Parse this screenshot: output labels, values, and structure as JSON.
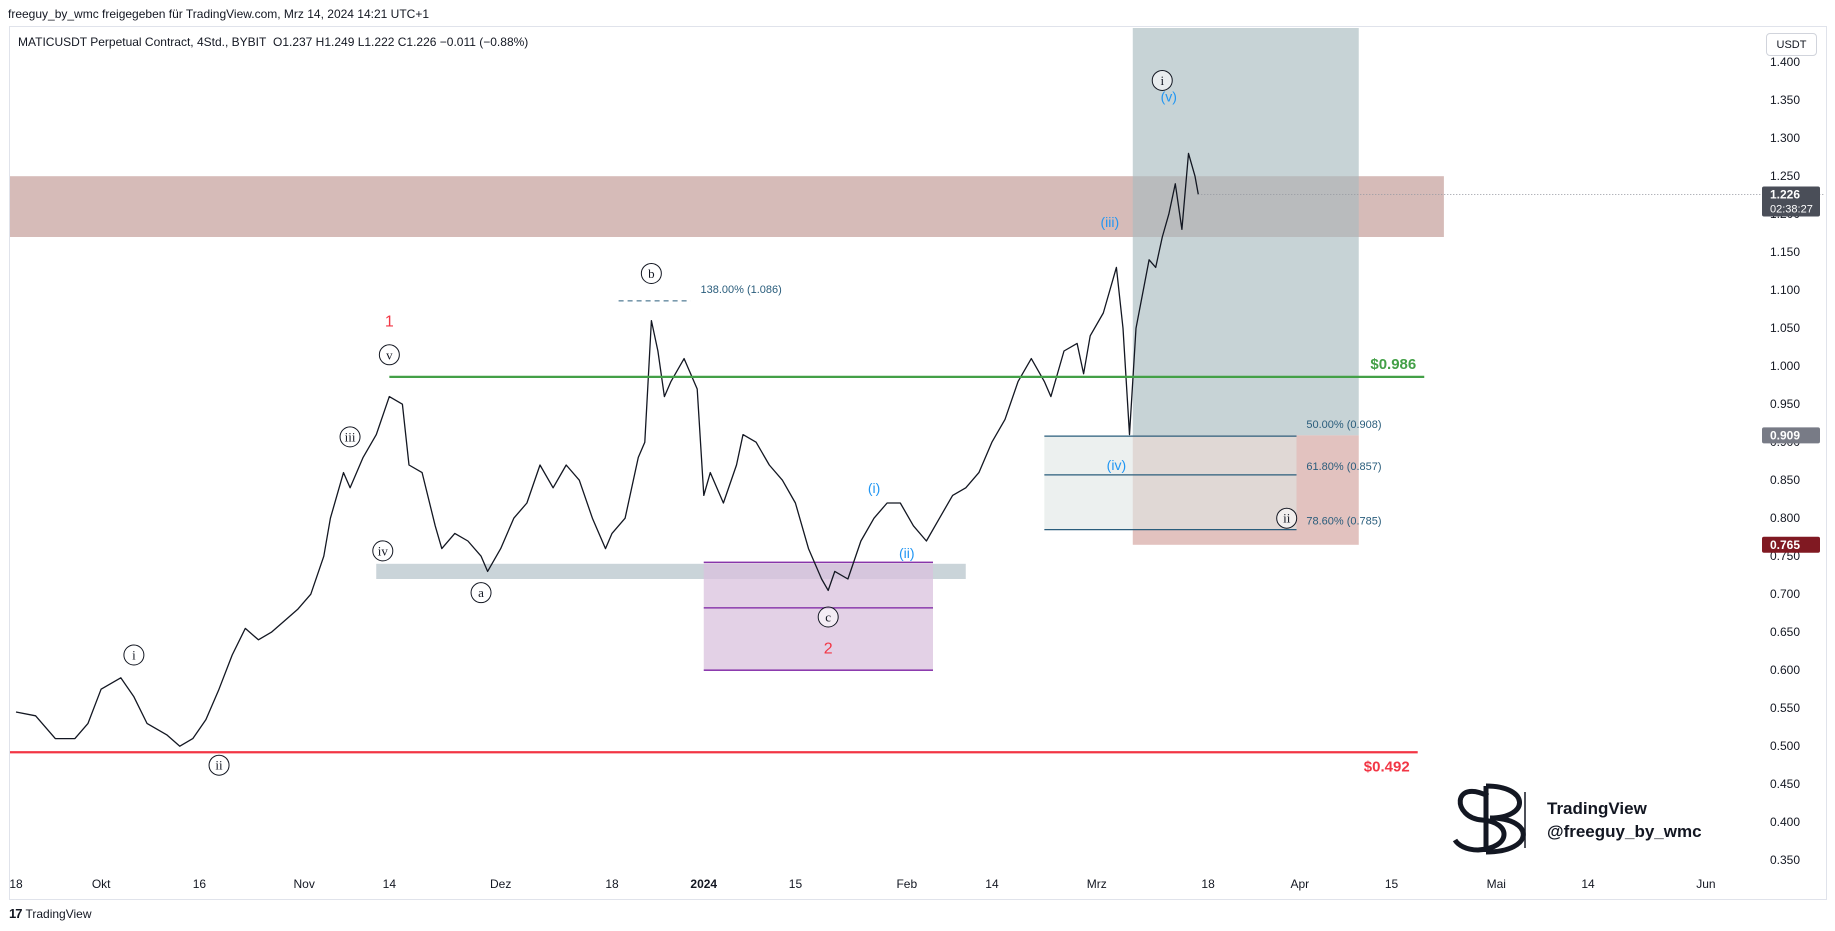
{
  "header": {
    "publisher": "freeguy_by_wmc freigegeben für TradingView.com, Mrz 14, 2024 14:21 UTC+1"
  },
  "legend": {
    "symbol": "MATICUSDT Perpetual Contract, 4Std., BYBIT",
    "ohlc": "O1.237  H1.249  L1.222  C1.226  −0.011 (−0.88%)"
  },
  "currency_button": "USDT",
  "footer": {
    "brand": "TradingView"
  },
  "watermark": {
    "line1": "TradingView",
    "line2": "@freeguy_by_wmc"
  },
  "chart_data": {
    "type": "line",
    "symbol": "MATICUSDT Perpetual Contract",
    "interval": "4Std.",
    "exchange": "BYBIT",
    "y_axis": {
      "range": [
        0.325,
        1.445
      ],
      "ticks": [
        "0.350",
        "0.400",
        "0.450",
        "0.500",
        "0.550",
        "0.600",
        "0.650",
        "0.700",
        "0.750",
        "0.800",
        "0.850",
        "0.900",
        "0.950",
        "1.000",
        "1.050",
        "1.100",
        "1.150",
        "1.200",
        "1.250",
        "1.300",
        "1.350",
        "1.400"
      ]
    },
    "x_axis": {
      "ticks": [
        {
          "label": "18",
          "day": 0
        },
        {
          "label": "Okt",
          "day": 13
        },
        {
          "label": "16",
          "day": 28
        },
        {
          "label": "Nov",
          "day": 44
        },
        {
          "label": "14",
          "day": 57
        },
        {
          "label": "Dez",
          "day": 74
        },
        {
          "label": "18",
          "day": 91
        },
        {
          "label": "2024",
          "day": 105
        },
        {
          "label": "15",
          "day": 119
        },
        {
          "label": "Feb",
          "day": 136
        },
        {
          "label": "14",
          "day": 149
        },
        {
          "label": "Mrz",
          "day": 165
        },
        {
          "label": "18",
          "day": 182
        },
        {
          "label": "Apr",
          "day": 196
        },
        {
          "label": "15",
          "day": 210
        },
        {
          "label": "Mai",
          "day": 226
        },
        {
          "label": "14",
          "day": 240
        },
        {
          "label": "Jun",
          "day": 258
        }
      ]
    },
    "price_path": [
      [
        0,
        0.545
      ],
      [
        3,
        0.54
      ],
      [
        6,
        0.51
      ],
      [
        9,
        0.51
      ],
      [
        11,
        0.53
      ],
      [
        13,
        0.575
      ],
      [
        16,
        0.59
      ],
      [
        18,
        0.565
      ],
      [
        20,
        0.53
      ],
      [
        23,
        0.515
      ],
      [
        25,
        0.5
      ],
      [
        27,
        0.51
      ],
      [
        29,
        0.535
      ],
      [
        31,
        0.575
      ],
      [
        33,
        0.62
      ],
      [
        35,
        0.655
      ],
      [
        37,
        0.64
      ],
      [
        39,
        0.65
      ],
      [
        41,
        0.665
      ],
      [
        43,
        0.68
      ],
      [
        45,
        0.7
      ],
      [
        47,
        0.75
      ],
      [
        48,
        0.8
      ],
      [
        50,
        0.86
      ],
      [
        51,
        0.84
      ],
      [
        53,
        0.88
      ],
      [
        55,
        0.91
      ],
      [
        57,
        0.96
      ],
      [
        59,
        0.95
      ],
      [
        60,
        0.87
      ],
      [
        62,
        0.86
      ],
      [
        64,
        0.79
      ],
      [
        65,
        0.76
      ],
      [
        67,
        0.78
      ],
      [
        69,
        0.77
      ],
      [
        71,
        0.75
      ],
      [
        72,
        0.73
      ],
      [
        74,
        0.76
      ],
      [
        76,
        0.8
      ],
      [
        78,
        0.82
      ],
      [
        80,
        0.87
      ],
      [
        82,
        0.84
      ],
      [
        84,
        0.87
      ],
      [
        86,
        0.85
      ],
      [
        88,
        0.8
      ],
      [
        90,
        0.76
      ],
      [
        91,
        0.78
      ],
      [
        93,
        0.8
      ],
      [
        95,
        0.88
      ],
      [
        96,
        0.9
      ],
      [
        97,
        1.06
      ],
      [
        98,
        1.02
      ],
      [
        99,
        0.96
      ],
      [
        100,
        0.98
      ],
      [
        102,
        1.01
      ],
      [
        104,
        0.97
      ],
      [
        105,
        0.83
      ],
      [
        106,
        0.86
      ],
      [
        108,
        0.82
      ],
      [
        110,
        0.87
      ],
      [
        111,
        0.91
      ],
      [
        113,
        0.9
      ],
      [
        115,
        0.87
      ],
      [
        117,
        0.85
      ],
      [
        119,
        0.82
      ],
      [
        121,
        0.76
      ],
      [
        123,
        0.72
      ],
      [
        124,
        0.705
      ],
      [
        125,
        0.73
      ],
      [
        127,
        0.72
      ],
      [
        129,
        0.77
      ],
      [
        131,
        0.8
      ],
      [
        133,
        0.82
      ],
      [
        135,
        0.82
      ],
      [
        137,
        0.79
      ],
      [
        139,
        0.77
      ],
      [
        141,
        0.8
      ],
      [
        143,
        0.83
      ],
      [
        145,
        0.84
      ],
      [
        147,
        0.86
      ],
      [
        149,
        0.9
      ],
      [
        151,
        0.93
      ],
      [
        153,
        0.98
      ],
      [
        155,
        1.01
      ],
      [
        157,
        0.98
      ],
      [
        158,
        0.96
      ],
      [
        160,
        1.02
      ],
      [
        162,
        1.03
      ],
      [
        163,
        0.99
      ],
      [
        164,
        1.04
      ],
      [
        166,
        1.07
      ],
      [
        168,
        1.13
      ],
      [
        169,
        1.05
      ],
      [
        170,
        0.91
      ],
      [
        171,
        1.05
      ],
      [
        173,
        1.14
      ],
      [
        174,
        1.13
      ],
      [
        175,
        1.17
      ],
      [
        176,
        1.2
      ],
      [
        177,
        1.24
      ],
      [
        178,
        1.18
      ],
      [
        179,
        1.28
      ],
      [
        180,
        1.25
      ],
      [
        180.5,
        1.226
      ]
    ],
    "horizontal_lines": [
      {
        "label": "$0.986",
        "price": 0.986,
        "color": "#43a047"
      },
      {
        "label": "$0.492",
        "price": 0.492,
        "color": "#f23645"
      }
    ],
    "zones": [
      {
        "name": "resistance",
        "from": 1.17,
        "to": 1.25,
        "color": "#c8a4a0"
      },
      {
        "name": "support",
        "from": 0.72,
        "to": 0.74,
        "color": "#b8c6cc"
      },
      {
        "name": "wave-2-target",
        "from": 0.6,
        "to": 0.742,
        "color": "#d9c2dd"
      }
    ],
    "fibonacci": [
      {
        "label": "138.00% (1.086)",
        "price": 1.086
      },
      {
        "label": "50.00% (0.908)",
        "price": 0.908
      },
      {
        "label": "61.80% (0.857)",
        "price": 0.857
      },
      {
        "label": "78.60% (0.785)",
        "price": 0.785
      }
    ],
    "position": {
      "entry": 0.909,
      "stop": 0.765,
      "target": 1.445
    },
    "price_labels": [
      {
        "text": "1.226",
        "sub": "02:38:27",
        "price": 1.226,
        "bg": "#4a4e58"
      },
      {
        "text": "0.909",
        "price": 0.909,
        "bg": "#787b86"
      },
      {
        "text": "0.765",
        "price": 0.765,
        "bg": "#801922"
      }
    ],
    "wave_labels": [
      {
        "text": "1",
        "day": 57,
        "price": 1.06,
        "style": "red"
      },
      {
        "text": "2",
        "day": 124,
        "price": 0.63,
        "style": "red"
      },
      {
        "text": "i",
        "day": 18,
        "price": 0.62,
        "style": "circle"
      },
      {
        "text": "ii",
        "day": 31,
        "price": 0.475,
        "style": "circle"
      },
      {
        "text": "iii",
        "day": 51,
        "price": 0.907,
        "style": "circle"
      },
      {
        "text": "iv",
        "day": 56,
        "price": 0.757,
        "style": "circle"
      },
      {
        "text": "v",
        "day": 57,
        "price": 1.015,
        "style": "circle"
      },
      {
        "text": "a",
        "day": 71,
        "price": 0.702,
        "style": "circle"
      },
      {
        "text": "b",
        "day": 97,
        "price": 1.122,
        "style": "circle"
      },
      {
        "text": "c",
        "day": 124,
        "price": 0.67,
        "style": "circle"
      },
      {
        "text": "i",
        "day": 175,
        "price": 1.376,
        "style": "circle"
      },
      {
        "text": "ii",
        "day": 194,
        "price": 0.8,
        "style": "circle"
      },
      {
        "text": "(i)",
        "day": 131,
        "price": 0.84,
        "style": "blue"
      },
      {
        "text": "(ii)",
        "day": 136,
        "price": 0.754,
        "style": "blue"
      },
      {
        "text": "(iii)",
        "day": 167,
        "price": 1.19,
        "style": "blue"
      },
      {
        "text": "(iv)",
        "day": 168,
        "price": 0.87,
        "style": "blue"
      },
      {
        "text": "(v)",
        "day": 176,
        "price": 1.355,
        "style": "blue"
      }
    ]
  }
}
